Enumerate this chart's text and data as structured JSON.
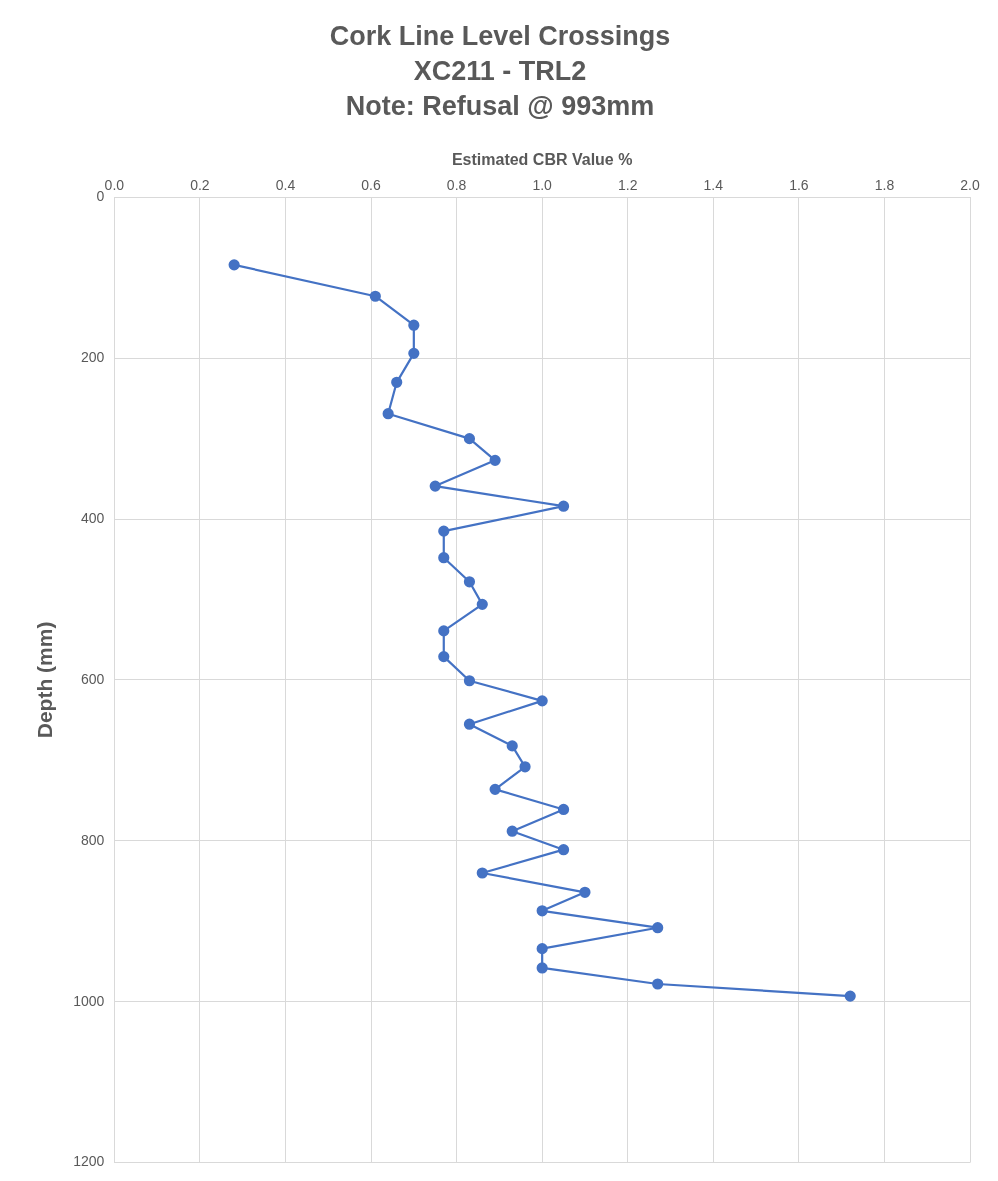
{
  "chart_data": {
    "type": "line",
    "title": "Cork Line Level Crossings\nXC211 - TRL2\nNote: Refusal @ 993mm",
    "xlabel": "Estimated CBR Value %",
    "ylabel": "Depth (mm)",
    "series": [
      {
        "color": "#4472c4",
        "x": [
          0.28,
          0.61,
          0.7,
          0.7,
          0.66,
          0.64,
          0.83,
          0.89,
          0.75,
          1.05,
          0.77,
          0.77,
          0.83,
          0.86,
          0.77,
          0.77,
          0.83,
          1.0,
          0.83,
          0.93,
          0.96,
          0.89,
          1.05,
          0.93,
          1.05,
          0.86,
          1.1,
          1.0,
          1.27,
          1.0,
          1.0,
          1.27,
          1.72
        ],
        "values": [
          84,
          123,
          159,
          194,
          230,
          269,
          300,
          327,
          359,
          384,
          415,
          448,
          478,
          506,
          539,
          571,
          601,
          626,
          655,
          682,
          708,
          736,
          761,
          788,
          811,
          840,
          864,
          887,
          908,
          934,
          958,
          978,
          993
        ]
      }
    ],
    "xlim": [
      0,
      2
    ],
    "xticks": [
      {
        "value": 0,
        "label": "0.0"
      },
      {
        "value": 0.2,
        "label": "0.2"
      },
      {
        "value": 0.4,
        "label": "0.4"
      },
      {
        "value": 0.6,
        "label": "0.6"
      },
      {
        "value": 0.8,
        "label": "0.8"
      },
      {
        "value": 1,
        "label": "1.0"
      },
      {
        "value": 1.2,
        "label": "1.2"
      },
      {
        "value": 1.4,
        "label": "1.4"
      },
      {
        "value": 1.6,
        "label": "1.6"
      },
      {
        "value": 1.8,
        "label": "1.8"
      },
      {
        "value": 2,
        "label": "2.0"
      }
    ],
    "ylim": [
      1200,
      0
    ],
    "yticks": [
      0,
      200,
      400,
      600,
      800,
      1000,
      1200
    ],
    "grid": true,
    "marker": "circle",
    "line_style": "solid",
    "legend": false
  }
}
